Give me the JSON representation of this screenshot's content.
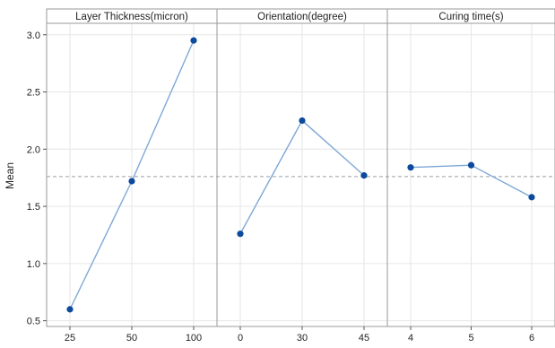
{
  "chart_data": {
    "type": "line",
    "ylabel": "Mean",
    "ylim": [
      0.45,
      3.1
    ],
    "yticks": [
      0.5,
      1.0,
      1.5,
      2.0,
      2.5,
      3.0
    ],
    "ytick_labels": [
      "0.5",
      "1.0",
      "1.5",
      "2.0",
      "2.5",
      "3.0"
    ],
    "reference_line": 1.76,
    "grid": true,
    "colors": {
      "line": "#7fa7d6",
      "marker": "#0b4a9c",
      "reference": "#9aa0a6",
      "grid": "#e6e6e6",
      "panel_border": "#9a9a9a",
      "header_bg": "#ffffff"
    },
    "panels": [
      {
        "title": "Layer Thickness(micron)",
        "categories": [
          "25",
          "50",
          "100"
        ],
        "values": [
          0.6,
          1.72,
          2.95
        ]
      },
      {
        "title": "Orientation(degree)",
        "categories": [
          "0",
          "30",
          "45"
        ],
        "values": [
          1.26,
          2.25,
          1.77
        ]
      },
      {
        "title": "Curing time(s)",
        "categories": [
          "4",
          "5",
          "6"
        ],
        "values": [
          1.84,
          1.86,
          1.58
        ]
      }
    ]
  }
}
